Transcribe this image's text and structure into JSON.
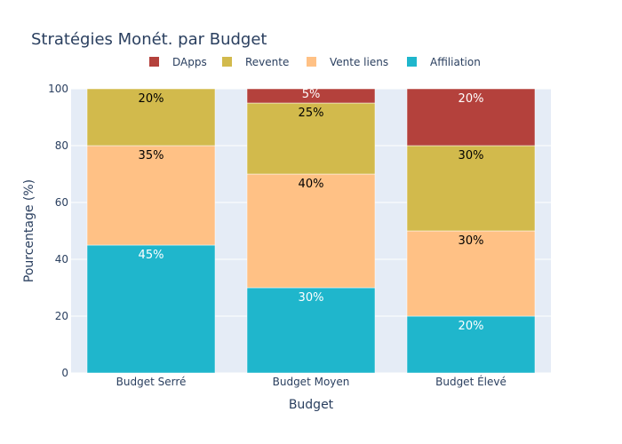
{
  "chart_data": {
    "type": "bar",
    "stacked": true,
    "title": "Stratégies Monét. par Budget",
    "xlabel": "Budget",
    "ylabel": "Pourcentage (%)",
    "ylim": [
      0,
      100
    ],
    "yticks": [
      "0",
      "20",
      "40",
      "60",
      "80",
      "100"
    ],
    "categories": [
      "Budget Serré",
      "Budget Moyen",
      "Budget Élevé"
    ],
    "legend_position": "top",
    "grid": true,
    "series": [
      {
        "name": "Affiliation",
        "color": "#1fb6cc",
        "values": [
          45,
          30,
          20
        ],
        "labels": [
          "45%",
          "30%",
          "20%"
        ],
        "label_color": "#ffffff"
      },
      {
        "name": "Vente liens",
        "color": "#ffc185",
        "values": [
          35,
          40,
          30
        ],
        "labels": [
          "35%",
          "40%",
          "30%"
        ],
        "label_color": "#000000"
      },
      {
        "name": "Revente",
        "color": "#d2ba4c",
        "values": [
          20,
          25,
          30
        ],
        "labels": [
          "20%",
          "25%",
          "30%"
        ],
        "label_color": "#000000"
      },
      {
        "name": "DApps",
        "color": "#b4413c",
        "values": [
          0,
          5,
          20
        ],
        "labels": [
          "",
          "5%",
          "20%"
        ],
        "label_color": "#ffffff"
      }
    ],
    "legend_order": [
      "DApps",
      "Revente",
      "Vente liens",
      "Affiliation"
    ]
  }
}
